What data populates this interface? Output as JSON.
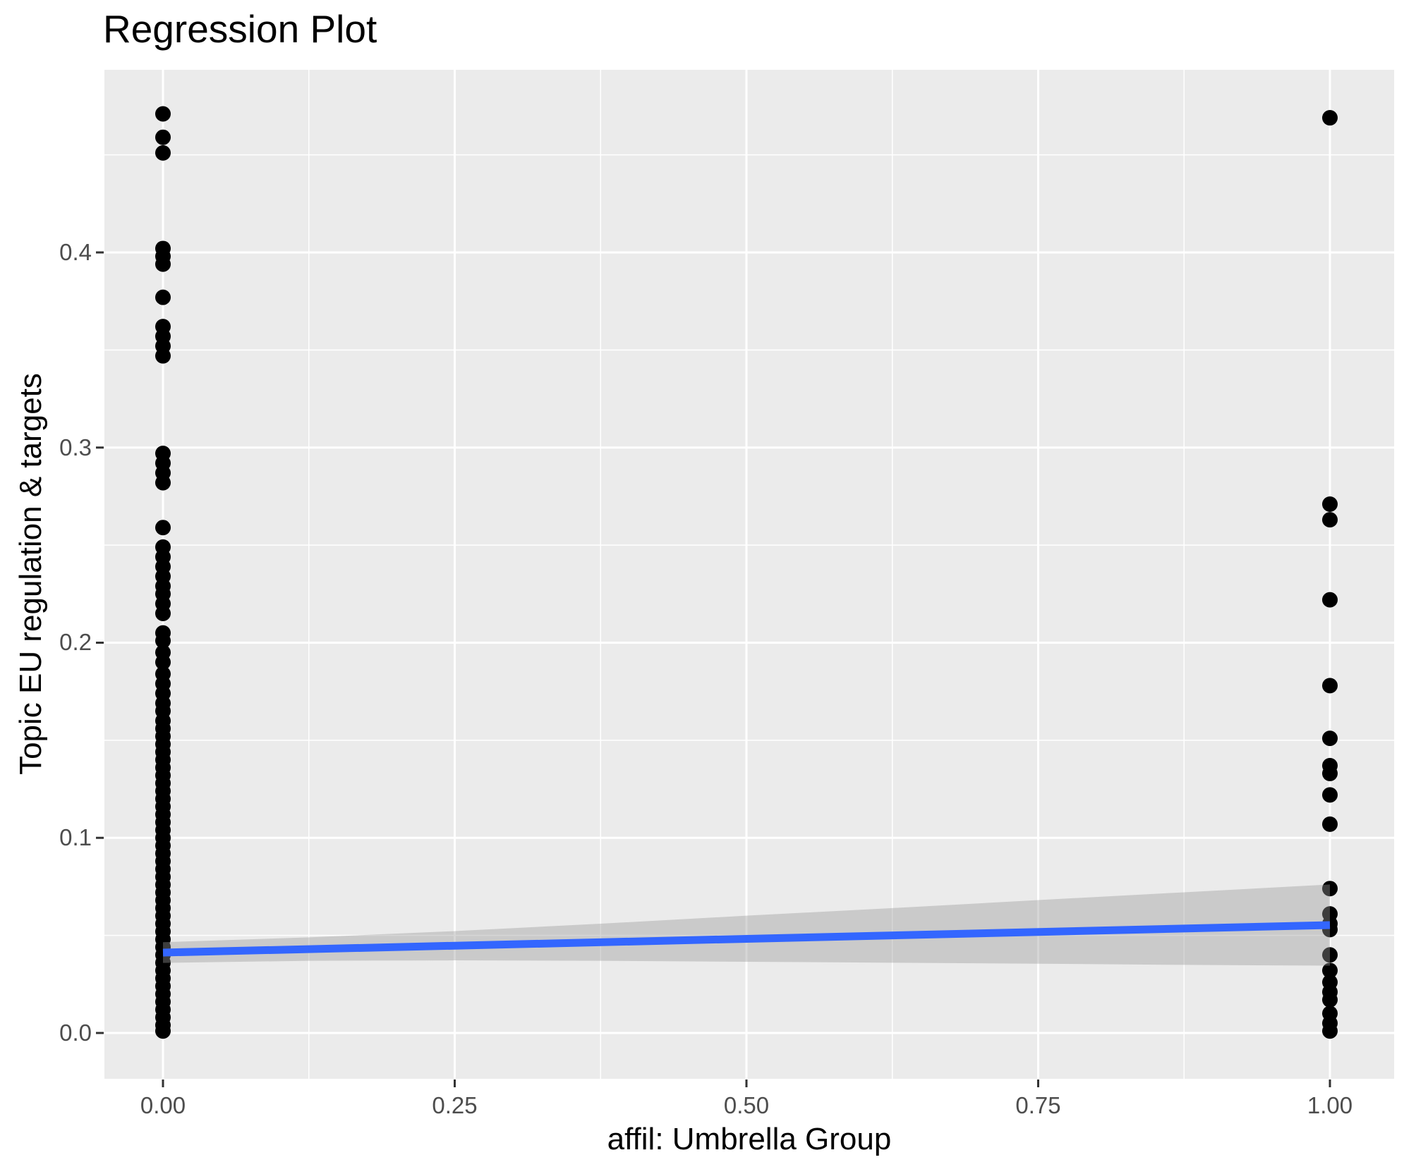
{
  "page_title": "Regression Plot",
  "chart_data": {
    "type": "scatter",
    "title": "Regression Plot",
    "xlabel": "affil: Umbrella Group",
    "ylabel": "Topic EU regulation & targets",
    "xlim": [
      -0.05,
      1.05
    ],
    "ylim": [
      -0.033,
      0.494
    ],
    "grid": true,
    "legend": "none",
    "x_ticks": [
      {
        "value": 0.0,
        "label": "0.00"
      },
      {
        "value": 0.25,
        "label": "0.25"
      },
      {
        "value": 0.5,
        "label": "0.50"
      },
      {
        "value": 0.75,
        "label": "0.75"
      },
      {
        "value": 1.0,
        "label": "1.00"
      }
    ],
    "y_ticks": [
      {
        "value": 0.0,
        "label": "0.0"
      },
      {
        "value": 0.1,
        "label": "0.1"
      },
      {
        "value": 0.2,
        "label": "0.2"
      },
      {
        "value": 0.3,
        "label": "0.3"
      },
      {
        "value": 0.4,
        "label": "0.4"
      }
    ],
    "x_minor_ticks": [
      0.125,
      0.375,
      0.625,
      0.875
    ],
    "y_minor_ticks": [
      0.05,
      0.15,
      0.25,
      0.35,
      0.45
    ],
    "series": [
      {
        "x": 0,
        "y": [
          0.471,
          0.459,
          0.451,
          0.402,
          0.398,
          0.394,
          0.377,
          0.362,
          0.357,
          0.352,
          0.347,
          0.297,
          0.292,
          0.287,
          0.282,
          0.259,
          0.249,
          0.244,
          0.239,
          0.234,
          0.229,
          0.225,
          0.22,
          0.215,
          0.205,
          0.201,
          0.195,
          0.19,
          0.184,
          0.179,
          0.174,
          0.169,
          0.165,
          0.16,
          0.156,
          0.152,
          0.148,
          0.144,
          0.14,
          0.136,
          0.132,
          0.128,
          0.124,
          0.12,
          0.116,
          0.112,
          0.108,
          0.104,
          0.1,
          0.096,
          0.092,
          0.088,
          0.084,
          0.08,
          0.076,
          0.072,
          0.068,
          0.064,
          0.06,
          0.056,
          0.052,
          0.048,
          0.044,
          0.04,
          0.036,
          0.032,
          0.028,
          0.024,
          0.02,
          0.016,
          0.012,
          0.008,
          0.004,
          0.001
        ]
      },
      {
        "x": 1,
        "y": [
          0.469,
          0.271,
          0.263,
          0.222,
          0.178,
          0.151,
          0.137,
          0.133,
          0.122,
          0.107,
          0.074,
          0.061,
          0.056,
          0.053,
          0.04,
          0.032,
          0.026,
          0.021,
          0.017,
          0.01,
          0.005,
          0.001
        ]
      }
    ],
    "regression_line": {
      "x": [
        0,
        1
      ],
      "y": [
        0.0412,
        0.0553
      ],
      "color": "#3366FF"
    },
    "confidence_band": {
      "x": [
        0,
        0.125,
        0.25,
        0.375,
        0.5,
        0.625,
        0.75,
        0.875,
        1
      ],
      "upper": [
        0.0465,
        0.049,
        0.0522,
        0.056,
        0.0601,
        0.064,
        0.0681,
        0.0721,
        0.0761
      ],
      "lower": [
        0.0359,
        0.037,
        0.0372,
        0.037,
        0.0365,
        0.036,
        0.0355,
        0.0349,
        0.0345
      ],
      "color": "rgba(153,153,153,0.4)"
    },
    "style": {
      "panel_background": "#EBEBEB",
      "gridline_color": "#FFFFFF",
      "point_color": "#000000",
      "tick_mark_color": "#333333",
      "tick_label_color": "#4D4D4D",
      "title_color": "#000000"
    }
  }
}
